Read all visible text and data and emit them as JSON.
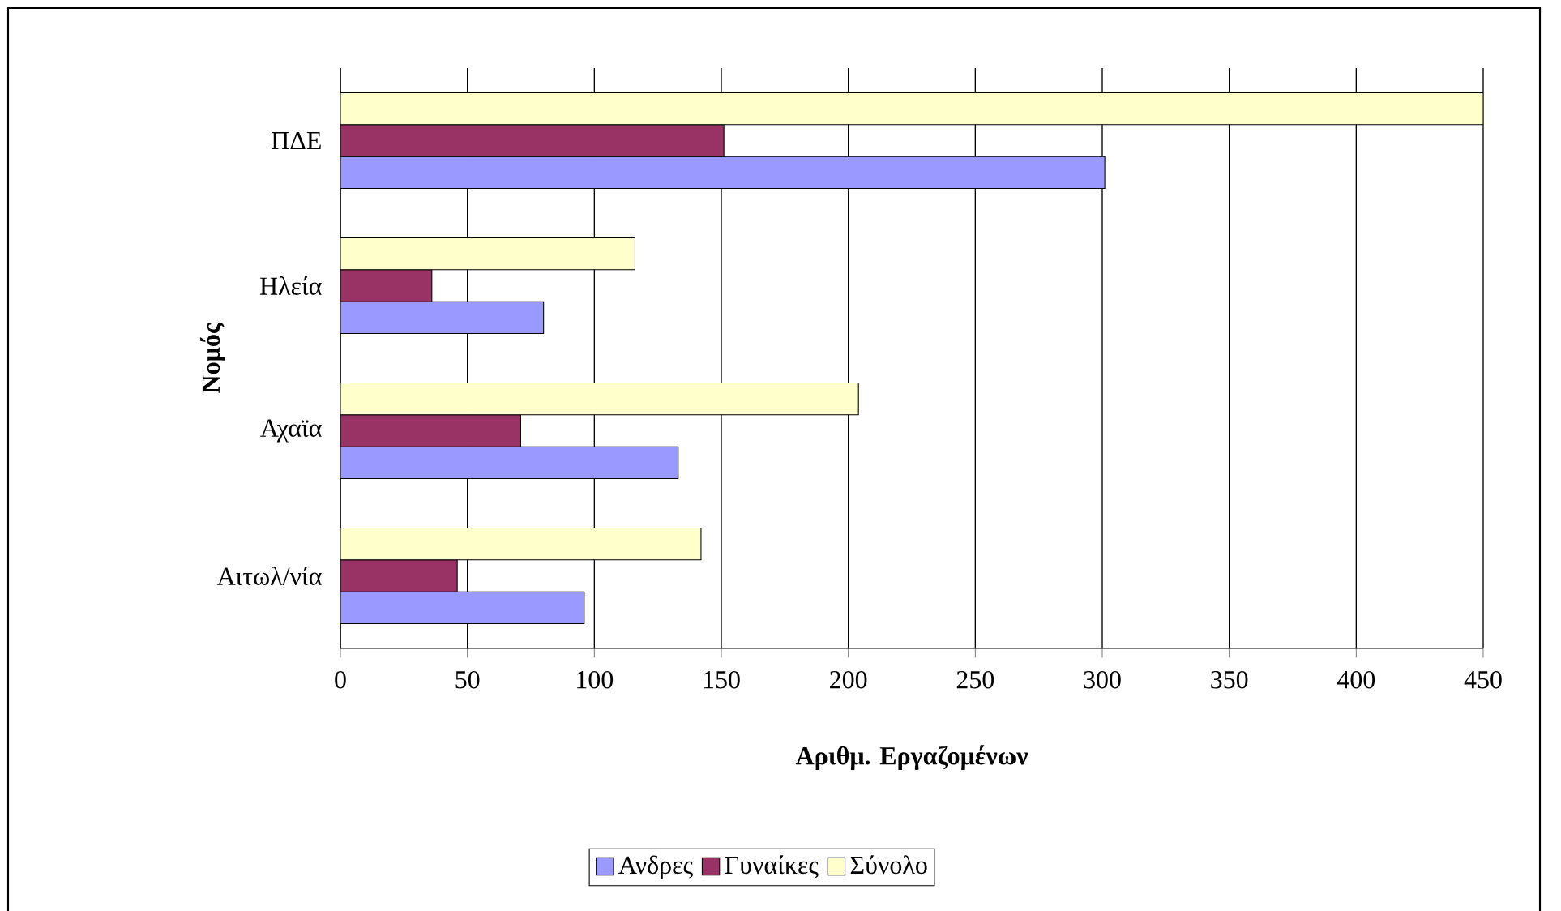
{
  "chart_data": {
    "type": "bar",
    "orientation": "horizontal",
    "xlabel": "Αριθμ. Εργαζομένων",
    "ylabel": "Νομός",
    "categories": [
      "ΠΔΕ",
      "Ηλεία",
      "Αχαϊα",
      "Αιτωλ/νία"
    ],
    "series": [
      {
        "name": "Ανδρες",
        "color": "#9999ff",
        "values": [
          301,
          80,
          133,
          96
        ]
      },
      {
        "name": "Γυναίκες",
        "color": "#993366",
        "values": [
          151,
          36,
          71,
          46
        ]
      },
      {
        "name": "Σύνολο",
        "color": "#ffffcc",
        "values": [
          450,
          116,
          204,
          142
        ]
      }
    ],
    "xlim": [
      0,
      450
    ],
    "xticks": [
      0,
      50,
      100,
      150,
      200,
      250,
      300,
      350,
      400,
      450
    ],
    "grid": "x",
    "legend": "bottom"
  }
}
